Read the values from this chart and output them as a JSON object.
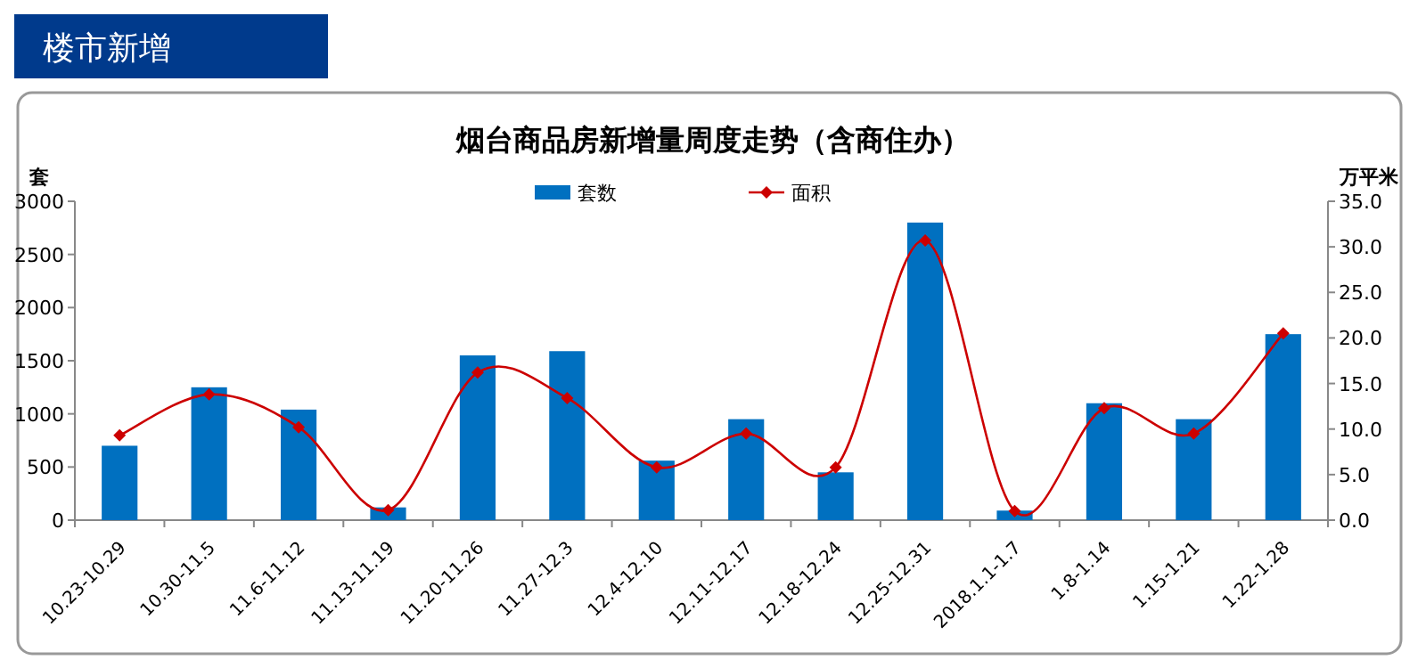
{
  "chart_data": {
    "type": "bar",
    "title": "烟台商品房新增量周度走势（含商住办）",
    "annotations": [
      "楼市新增"
    ],
    "ylabel": "套",
    "y2label": "万平米",
    "categories": [
      "10.23-10.29",
      "10.30-11.5",
      "11.6-11.12",
      "11.13-11.19",
      "11.20-11.26",
      "11.27-12.3",
      "12.4-12.10",
      "12.11-12.17",
      "12.18-12.24",
      "12.25-12.31",
      "2018.1.1-1.7",
      "1.8-1.14",
      "1.15-1.21",
      "1.22-1.28"
    ],
    "series": [
      {
        "name": "套数",
        "color": "#0070c0",
        "values": [
          700,
          1250,
          1040,
          120,
          1550,
          1590,
          560,
          950,
          450,
          2800,
          90,
          1100,
          950,
          1750
        ]
      },
      {
        "name": "面积",
        "type": "line",
        "axis": "y2",
        "color": "#cc0000",
        "marker": "diamond",
        "values": [
          9.3,
          13.8,
          10.2,
          1.1,
          16.2,
          13.4,
          5.8,
          9.5,
          5.8,
          30.7,
          1.0,
          12.3,
          9.5,
          20.5
        ]
      }
    ],
    "ylim": [
      0,
      3000
    ],
    "yticks": [
      0,
      500,
      1000,
      1500,
      2000,
      2500,
      3000
    ],
    "y2lim": [
      0,
      35
    ],
    "y2ticks": [
      {
        "value": 0,
        "label": "0.0"
      },
      {
        "value": 5,
        "label": "5.0"
      },
      {
        "value": 10,
        "label": "10.0"
      },
      {
        "value": 15,
        "label": "15.0"
      },
      {
        "value": 20,
        "label": "20.0"
      },
      {
        "value": 25,
        "label": "25.0"
      },
      {
        "value": 30,
        "label": "30.0"
      },
      {
        "value": 35,
        "label": "35.0"
      }
    ],
    "legend": "top",
    "grid": false
  }
}
